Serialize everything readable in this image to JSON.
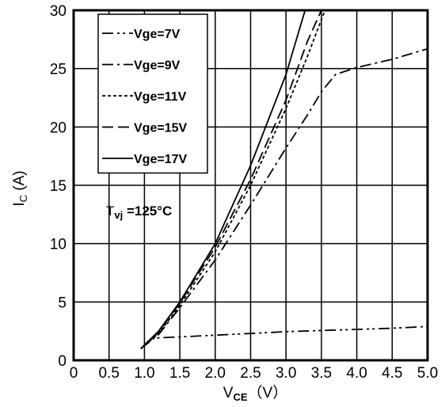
{
  "chart_data": {
    "type": "line",
    "xlabel": "V",
    "xlabel_sub": "CE",
    "xlabel_unit": "（V）",
    "ylabel": "I",
    "ylabel_sub": "C",
    "ylabel_unit": " (A)",
    "xlim": [
      0,
      5
    ],
    "ylim": [
      0,
      30
    ],
    "x_ticks": [
      "0",
      "0.5",
      "1.0",
      "1.5",
      "2.0",
      "2.5",
      "3.0",
      "3.5",
      "4.0",
      "4.5",
      "5.0"
    ],
    "x_tick_values": [
      0,
      0.5,
      1.0,
      1.5,
      2.0,
      2.5,
      3.0,
      3.5,
      4.0,
      4.5,
      5.0
    ],
    "y_ticks": [
      "0",
      "5",
      "10",
      "15",
      "20",
      "25",
      "30"
    ],
    "y_tick_values": [
      0,
      5,
      10,
      15,
      20,
      25,
      30
    ],
    "grid": true,
    "legend_position": "top-left",
    "annotation": {
      "main": "T",
      "sub": "vj",
      "rest": " =125°C"
    },
    "series": [
      {
        "name": "Vge=7V",
        "dash": "dashdotdot",
        "x": [
          0.95,
          1.1,
          1.5,
          2.0,
          2.5,
          3.0,
          3.5,
          4.0,
          4.5,
          5.0
        ],
        "y": [
          1.0,
          1.9,
          2.0,
          2.15,
          2.3,
          2.45,
          2.55,
          2.65,
          2.75,
          2.9
        ]
      },
      {
        "name": "Vge=9V",
        "dash": "dashdot",
        "x": [
          0.95,
          1.2,
          1.5,
          2.0,
          2.5,
          3.0,
          3.3,
          3.5,
          3.7,
          4.0,
          4.5,
          5.0
        ],
        "y": [
          1.0,
          2.2,
          4.5,
          8.6,
          13.3,
          18.2,
          21.0,
          23.0,
          24.5,
          25.1,
          25.8,
          26.7
        ]
      },
      {
        "name": "Vge=11V",
        "dash": "dotted",
        "x": [
          0.95,
          1.2,
          1.5,
          2.0,
          2.5,
          3.0,
          3.3,
          3.55
        ],
        "y": [
          1.0,
          2.3,
          4.7,
          9.3,
          15.0,
          21.6,
          26.0,
          30.0
        ]
      },
      {
        "name": "Vge=15V",
        "dash": "dashed",
        "x": [
          0.95,
          1.2,
          1.5,
          2.0,
          2.5,
          3.0,
          3.3,
          3.5
        ],
        "y": [
          1.0,
          2.4,
          4.9,
          9.7,
          15.5,
          22.3,
          27.3,
          30.0
        ]
      },
      {
        "name": "Vge=17V",
        "dash": "solid",
        "x": [
          0.95,
          1.2,
          1.5,
          2.0,
          2.5,
          3.0,
          3.27
        ],
        "y": [
          1.0,
          2.5,
          5.0,
          10.0,
          16.7,
          24.5,
          30.0
        ]
      }
    ]
  }
}
